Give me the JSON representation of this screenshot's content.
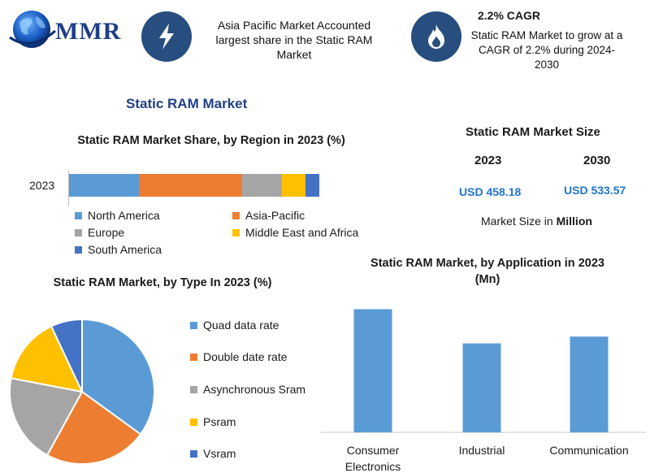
{
  "header": {
    "logo_text": "MMR",
    "highlight1": {
      "icon": "lightning-bolt-icon",
      "text": "Asia Pacific Market Accounted largest share in the Static RAM Market"
    },
    "highlight2": {
      "icon": "flame-icon",
      "title": "2.2% CAGR",
      "text": "Static RAM Market to grow at a CAGR of 2.2% during 2024-2030"
    }
  },
  "main_title": "Static RAM Market",
  "market_size": {
    "title": "Static RAM Market Size",
    "year1": "2023",
    "year2": "2030",
    "value1": "USD 458.18",
    "value2": "USD 533.57",
    "note_prefix": "Market Size in ",
    "note_bold": "Million"
  },
  "colors": {
    "blue": "#5b9bd5",
    "orange": "#ed7d31",
    "gray": "#a5a5a5",
    "yellow": "#ffc000",
    "darkblue": "#4472c4",
    "navy": "#284e7f"
  },
  "chart_data": [
    {
      "type": "bar",
      "orientation": "horizontal-stacked",
      "title": "Static RAM Market Share, by Region in 2023 (%)",
      "categories": [
        "2023"
      ],
      "series": [
        {
          "name": "North America",
          "values": [
            28
          ]
        },
        {
          "name": "Asia-Pacific",
          "values": [
            41
          ]
        },
        {
          "name": "Europe",
          "values": [
            16
          ]
        },
        {
          "name": "Middle East and Africa",
          "values": [
            9.5
          ]
        },
        {
          "name": "South America",
          "values": [
            5.5
          ]
        }
      ],
      "xlim": [
        0,
        100
      ],
      "legend": "bottom"
    },
    {
      "type": "pie",
      "title": "Static RAM Market, by Type In 2023 (%)",
      "labels": [
        "Quad data rate",
        "Double date rate",
        "Asynchronous Sram",
        "Psram",
        "Vsram"
      ],
      "values": [
        35,
        23,
        20,
        15,
        7
      ],
      "legend": "right"
    },
    {
      "type": "bar",
      "title": "Static RAM Market, by Application in 2023 (Mn)",
      "categories": [
        "Consumer Electronics",
        "Industrial",
        "Communication"
      ],
      "values": [
        180,
        130,
        140
      ],
      "ylim": [
        0,
        190
      ],
      "grid": false
    }
  ]
}
